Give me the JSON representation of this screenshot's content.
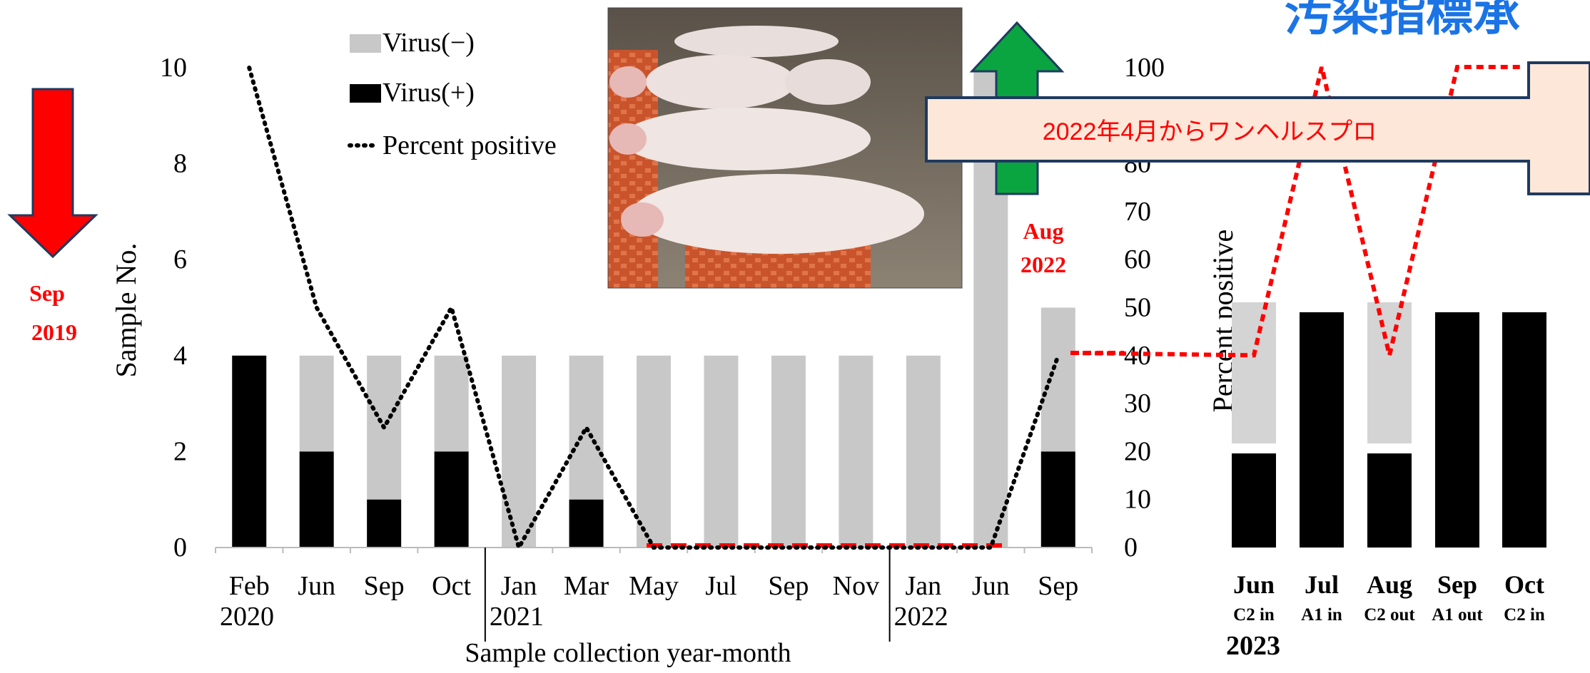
{
  "header": {
    "title_fragment": "汚染指標承"
  },
  "annotations": {
    "sep2019": [
      "Sep",
      "2019"
    ],
    "aug2022": [
      "Aug",
      "2022"
    ],
    "one_health_banner": "2022年4月からワンヘルスプロ",
    "photo": "pigs-in-pen-photo"
  },
  "colors": {
    "positive": "#000000",
    "negative": "#c8c8c8",
    "negative_right": "#d4d4d4",
    "red": "#ff0000",
    "green": "#0aa541",
    "banner_fill": "#fde7d8",
    "banner_stroke": "#1f3a5f",
    "title_blue": "#1a74e6"
  },
  "chart_data": [
    {
      "type": "bar",
      "stacked": true,
      "categories": [
        "Feb",
        "Jun",
        "Sep",
        "Oct",
        "Jan",
        "Mar",
        "May",
        "Jul",
        "Sep",
        "Nov",
        "Jan",
        "Jun",
        "Sep"
      ],
      "year_labels": [
        {
          "text": "2020",
          "at_index": 0
        },
        {
          "text": "2021",
          "at_index": 4
        },
        {
          "text": "2022",
          "at_index": 10
        }
      ],
      "series": [
        {
          "name": "Virus(+)",
          "type": "bar",
          "values": [
            4,
            2,
            1,
            2,
            0,
            1,
            0,
            0,
            0,
            0,
            0,
            0,
            2
          ]
        },
        {
          "name": "Virus(−)",
          "type": "bar",
          "values": [
            0,
            2,
            3,
            2,
            4,
            3,
            4,
            4,
            4,
            4,
            4,
            10,
            3
          ]
        },
        {
          "name": "Percent positive",
          "type": "line",
          "style": "dotted",
          "axis": "right",
          "values": [
            100,
            50,
            25,
            50,
            0,
            25,
            0,
            0,
            0,
            0,
            0,
            0,
            40
          ]
        }
      ],
      "legend": [
        "Virus(−)",
        "Virus(+)",
        "Percent positive"
      ],
      "legend_position": "top-left",
      "xlabel": "Sample collection year-month",
      "ylabel": "Sample No.",
      "y2label": "Percent positive",
      "ylim": [
        0,
        10
      ],
      "yticks": [
        0,
        2,
        4,
        6,
        8,
        10
      ],
      "y2lim": [
        0,
        100
      ],
      "y2ticks": [
        0,
        10,
        20,
        30,
        40,
        50,
        60,
        70,
        80,
        100
      ],
      "red_zero_line_range": [
        "May",
        "Jun"
      ]
    },
    {
      "type": "bar",
      "stacked": true,
      "categories": [
        "Jun",
        "Jul",
        "Aug",
        "Sep",
        "Oct"
      ],
      "sublabels": [
        "C2 in",
        "A1 in",
        "C2 out",
        "A1 out",
        "C2 in"
      ],
      "year": "2023",
      "series": [
        {
          "name": "Virus(+)",
          "type": "bar",
          "values": [
            40,
            100,
            40,
            100,
            100
          ]
        },
        {
          "name": "Virus(−)",
          "type": "bar",
          "values": [
            60,
            0,
            60,
            0,
            0
          ]
        },
        {
          "name": "Percent positive",
          "type": "line",
          "style": "dotted",
          "color": "#ff0000",
          "values": [
            40,
            100,
            40,
            100,
            100
          ]
        }
      ]
    }
  ]
}
